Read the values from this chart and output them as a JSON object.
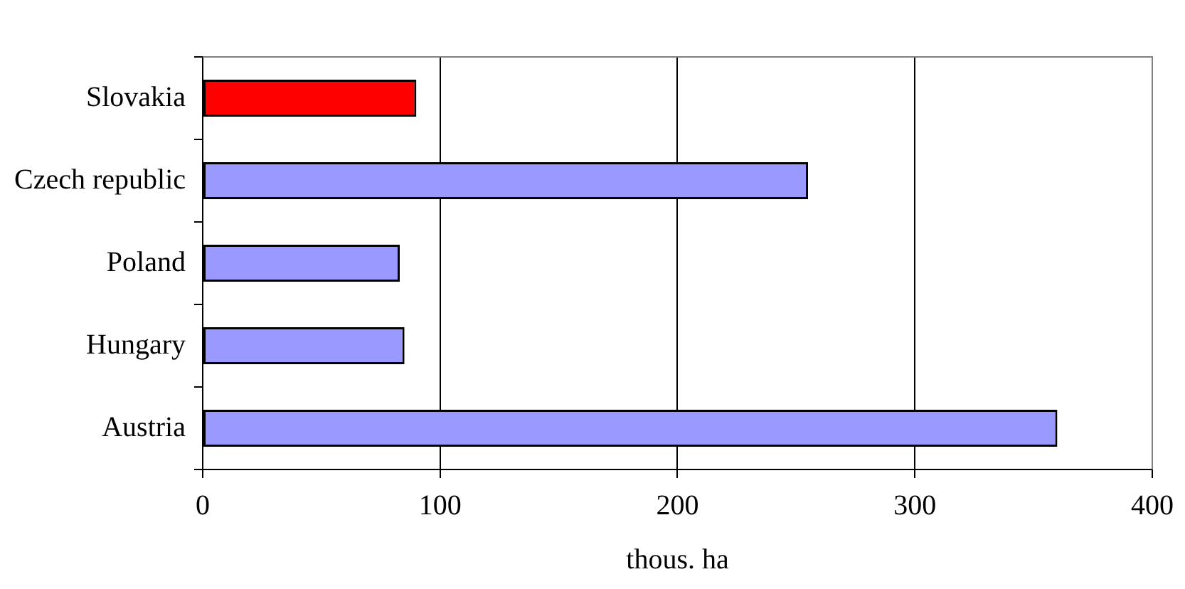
{
  "chart_data": {
    "type": "bar",
    "orientation": "horizontal",
    "xlabel": "thous. ha",
    "categories": [
      "Slovakia",
      "Czech republic",
      "Poland",
      "Hungary",
      "Austria"
    ],
    "values": [
      90,
      255,
      83,
      85,
      360
    ],
    "colors": [
      "#ff0000",
      "#9999ff",
      "#9999ff",
      "#9999ff",
      "#9999ff"
    ],
    "xlim": [
      0,
      400
    ],
    "xticks": [
      0,
      100,
      200,
      300,
      400
    ],
    "grid": "x",
    "legend": false
  }
}
